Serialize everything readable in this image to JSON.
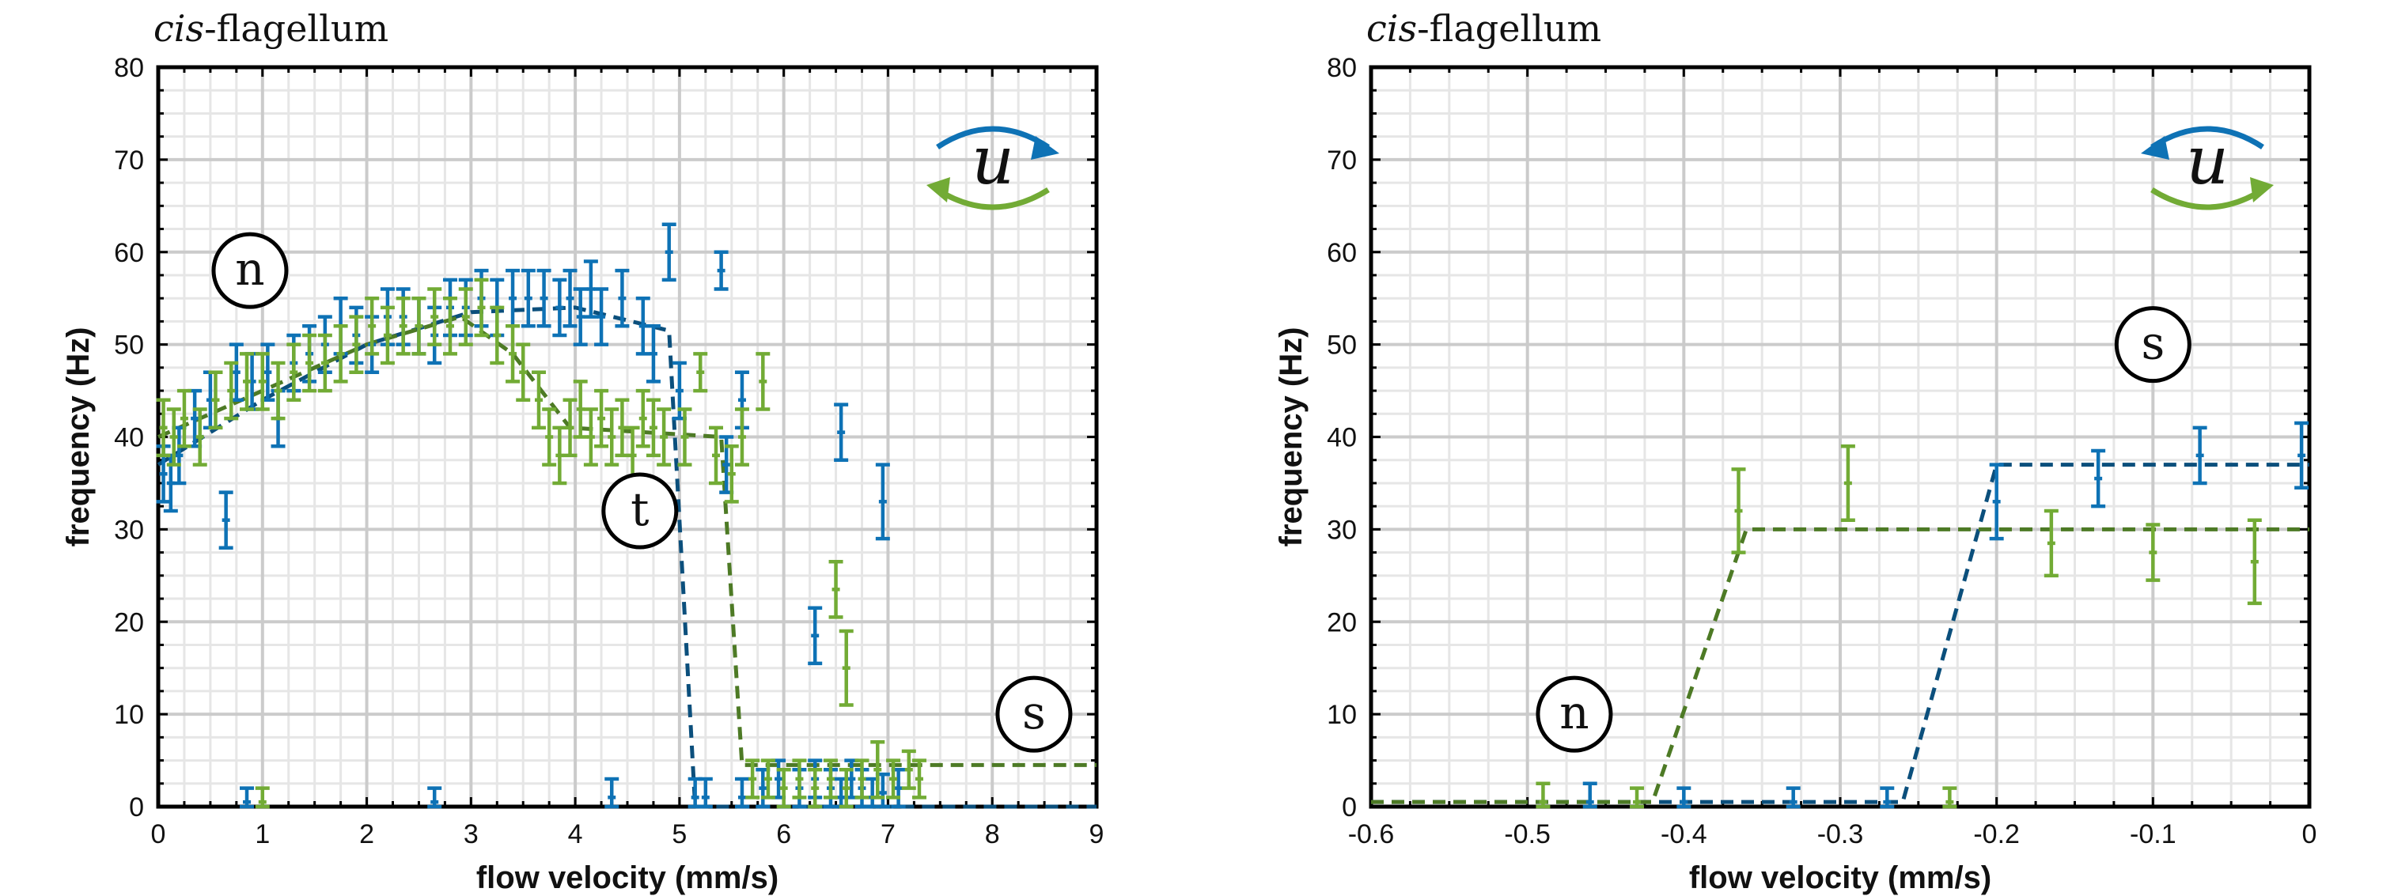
{
  "colors": {
    "blue": "#0e72b5",
    "green": "#72ab35",
    "blue_fit": "#0b4f7c",
    "green_fit": "#4d7a25"
  },
  "chart_data": [
    {
      "type": "scatter",
      "title_italic": "cis",
      "title_rest": "-flagellum",
      "xlabel": "flow velocity (mm/s)",
      "ylabel": "frequency (Hz)",
      "xlim": [
        0,
        9
      ],
      "ylim": [
        0,
        80
      ],
      "xticks": [
        "0",
        "1",
        "2",
        "3",
        "4",
        "5",
        "6",
        "7",
        "8",
        "9"
      ],
      "yticks": [
        "0",
        "10",
        "20",
        "30",
        "40",
        "50",
        "60",
        "70",
        "80"
      ],
      "grid": true,
      "region_labels": [
        "n",
        "t",
        "s"
      ],
      "rotation_symbol": "u",
      "rotation_arrows": "top arrow blue pointing right, bottom arrow green pointing left",
      "series": [
        {
          "color": "blue",
          "points": [
            [
              0.05,
              36,
              3
            ],
            [
              0.12,
              35,
              3
            ],
            [
              0.2,
              38,
              3
            ],
            [
              0.35,
              42,
              3
            ],
            [
              0.5,
              44,
              3
            ],
            [
              0.65,
              31,
              3
            ],
            [
              0.75,
              47,
              3
            ],
            [
              0.9,
              46,
              3
            ],
            [
              1.05,
              47,
              3
            ],
            [
              1.15,
              42,
              3
            ],
            [
              1.3,
              48,
              3
            ],
            [
              1.45,
              49,
              3
            ],
            [
              1.6,
              50,
              3
            ],
            [
              1.75,
              52,
              3
            ],
            [
              1.9,
              51,
              3
            ],
            [
              2.05,
              50,
              3
            ],
            [
              2.2,
              53,
              3
            ],
            [
              2.35,
              53,
              3
            ],
            [
              2.5,
              52,
              3
            ],
            [
              2.65,
              51,
              3
            ],
            [
              2.8,
              54,
              3
            ],
            [
              2.95,
              54,
              3
            ],
            [
              3.1,
              55,
              3
            ],
            [
              3.25,
              54,
              3
            ],
            [
              3.4,
              55,
              3
            ],
            [
              3.55,
              55,
              3
            ],
            [
              3.7,
              55,
              3
            ],
            [
              3.85,
              54,
              3
            ],
            [
              3.95,
              55,
              3
            ],
            [
              4.05,
              53,
              3
            ],
            [
              4.15,
              56,
              3
            ],
            [
              4.25,
              53,
              3
            ],
            [
              4.45,
              55,
              3
            ],
            [
              4.65,
              52,
              3
            ],
            [
              4.75,
              49,
              3
            ],
            [
              4.9,
              60,
              3
            ],
            [
              5.0,
              45,
              3
            ],
            [
              5.4,
              58,
              2
            ],
            [
              5.45,
              37,
              3
            ],
            [
              5.6,
              44,
              3
            ],
            [
              6.3,
              18.5,
              3
            ],
            [
              6.55,
              40.5,
              3
            ],
            [
              6.95,
              33,
              4
            ],
            [
              0.85,
              0.5,
              1.5
            ],
            [
              2.65,
              0.5,
              1.5
            ],
            [
              4.35,
              1,
              2
            ],
            [
              5.15,
              1,
              2
            ],
            [
              5.25,
              1,
              2
            ],
            [
              5.6,
              1,
              2
            ],
            [
              5.8,
              2,
              2
            ],
            [
              5.95,
              3,
              2
            ],
            [
              6.15,
              2,
              2
            ],
            [
              6.3,
              3,
              2
            ],
            [
              6.45,
              2,
              2
            ],
            [
              6.55,
              1,
              2
            ],
            [
              6.65,
              3,
              2
            ],
            [
              6.75,
              2,
              2
            ],
            [
              6.85,
              1,
              2
            ],
            [
              6.95,
              1.5,
              2
            ],
            [
              7.1,
              2,
              2
            ]
          ],
          "fit": [
            [
              0,
              37
            ],
            [
              1,
              44
            ],
            [
              2,
              50
            ],
            [
              3,
              53.5
            ],
            [
              4,
              54
            ],
            [
              4.9,
              51.5
            ],
            [
              5.15,
              0
            ],
            [
              9,
              0
            ]
          ]
        },
        {
          "color": "green",
          "points": [
            [
              0.05,
              41,
              3
            ],
            [
              0.15,
              40,
              3
            ],
            [
              0.25,
              42,
              3
            ],
            [
              0.4,
              40,
              3
            ],
            [
              0.55,
              44,
              3
            ],
            [
              0.7,
              45,
              3
            ],
            [
              0.85,
              46,
              3
            ],
            [
              1.0,
              46,
              3
            ],
            [
              1.15,
              45,
              3
            ],
            [
              1.3,
              47,
              3
            ],
            [
              1.45,
              48,
              3
            ],
            [
              1.6,
              48,
              3
            ],
            [
              1.75,
              49,
              3
            ],
            [
              1.9,
              50,
              3
            ],
            [
              2.05,
              52,
              3
            ],
            [
              2.2,
              51,
              3
            ],
            [
              2.35,
              52,
              3
            ],
            [
              2.5,
              52,
              3
            ],
            [
              2.65,
              53,
              3
            ],
            [
              2.8,
              52,
              3
            ],
            [
              2.95,
              53,
              3
            ],
            [
              3.1,
              54,
              3
            ],
            [
              3.25,
              51,
              3
            ],
            [
              3.4,
              49,
              3
            ],
            [
              3.5,
              47,
              3
            ],
            [
              3.65,
              44,
              3
            ],
            [
              3.75,
              40,
              3
            ],
            [
              3.85,
              38,
              3
            ],
            [
              3.95,
              41,
              3
            ],
            [
              4.05,
              43,
              3
            ],
            [
              4.15,
              40,
              3
            ],
            [
              4.25,
              42,
              3
            ],
            [
              4.35,
              40,
              3
            ],
            [
              4.45,
              41,
              3
            ],
            [
              4.55,
              38,
              3
            ],
            [
              4.65,
              42,
              3
            ],
            [
              4.75,
              41,
              3
            ],
            [
              4.85,
              40,
              3
            ],
            [
              5.05,
              40,
              3
            ],
            [
              5.2,
              47,
              2
            ],
            [
              5.35,
              38,
              3
            ],
            [
              5.5,
              36,
              3
            ],
            [
              5.6,
              40,
              3
            ],
            [
              5.8,
              46,
              3
            ],
            [
              6.5,
              23.5,
              3
            ],
            [
              6.6,
              15,
              4
            ],
            [
              1.0,
              0.5,
              1.5
            ],
            [
              5.7,
              3,
              2
            ],
            [
              5.85,
              3,
              2
            ],
            [
              6.0,
              2,
              2
            ],
            [
              6.15,
              3,
              2
            ],
            [
              6.3,
              2,
              2
            ],
            [
              6.45,
              3,
              2
            ],
            [
              6.6,
              2,
              2
            ],
            [
              6.75,
              3,
              2
            ],
            [
              6.9,
              4,
              3
            ],
            [
              7.05,
              3,
              2
            ],
            [
              7.2,
              4,
              2
            ],
            [
              7.3,
              3,
              2
            ]
          ],
          "fit": [
            [
              0,
              40
            ],
            [
              1,
              45
            ],
            [
              2,
              50
            ],
            [
              2.9,
              53
            ],
            [
              3.4,
              49
            ],
            [
              3.95,
              41
            ],
            [
              5.4,
              40
            ],
            [
              5.6,
              4.5
            ],
            [
              9,
              4.5
            ]
          ]
        }
      ]
    },
    {
      "type": "scatter",
      "title_italic": "cis",
      "title_rest": "-flagellum",
      "xlabel": "flow velocity (mm/s)",
      "ylabel": "frequency (Hz)",
      "xlim": [
        -0.6,
        0
      ],
      "ylim": [
        0,
        80
      ],
      "xticks": [
        "-0.6",
        "-0.5",
        "-0.4",
        "-0.3",
        "-0.2",
        "-0.1",
        "0"
      ],
      "yticks": [
        "0",
        "10",
        "20",
        "30",
        "40",
        "50",
        "60",
        "70",
        "80"
      ],
      "grid": true,
      "region_labels": [
        "n",
        "s"
      ],
      "rotation_symbol": "u",
      "rotation_arrows": "top arrow blue pointing left, bottom arrow green pointing right",
      "series": [
        {
          "color": "blue",
          "points": [
            [
              -0.46,
              0.5,
              2
            ],
            [
              -0.4,
              0.5,
              1.5
            ],
            [
              -0.33,
              0.5,
              1.5
            ],
            [
              -0.27,
              0.5,
              1.5
            ],
            [
              -0.2,
              33,
              4
            ],
            [
              -0.135,
              35.5,
              3
            ],
            [
              -0.07,
              38,
              3
            ],
            [
              -0.005,
              38,
              3.5
            ]
          ],
          "fit": [
            [
              -0.6,
              0.5
            ],
            [
              -0.26,
              0.5
            ],
            [
              -0.2,
              37
            ],
            [
              0,
              37
            ]
          ]
        },
        {
          "color": "green",
          "points": [
            [
              -0.49,
              0.5,
              2
            ],
            [
              -0.43,
              0.5,
              1.5
            ],
            [
              -0.23,
              0.5,
              1.5
            ],
            [
              -0.365,
              32,
              4.5
            ],
            [
              -0.295,
              35,
              4
            ],
            [
              -0.165,
              28.5,
              3.5
            ],
            [
              -0.1,
              27.5,
              3
            ],
            [
              -0.035,
              26.5,
              4.5
            ]
          ],
          "fit": [
            [
              -0.6,
              0.5
            ],
            [
              -0.42,
              0.5
            ],
            [
              -0.36,
              30
            ],
            [
              0,
              30
            ]
          ]
        }
      ]
    }
  ]
}
